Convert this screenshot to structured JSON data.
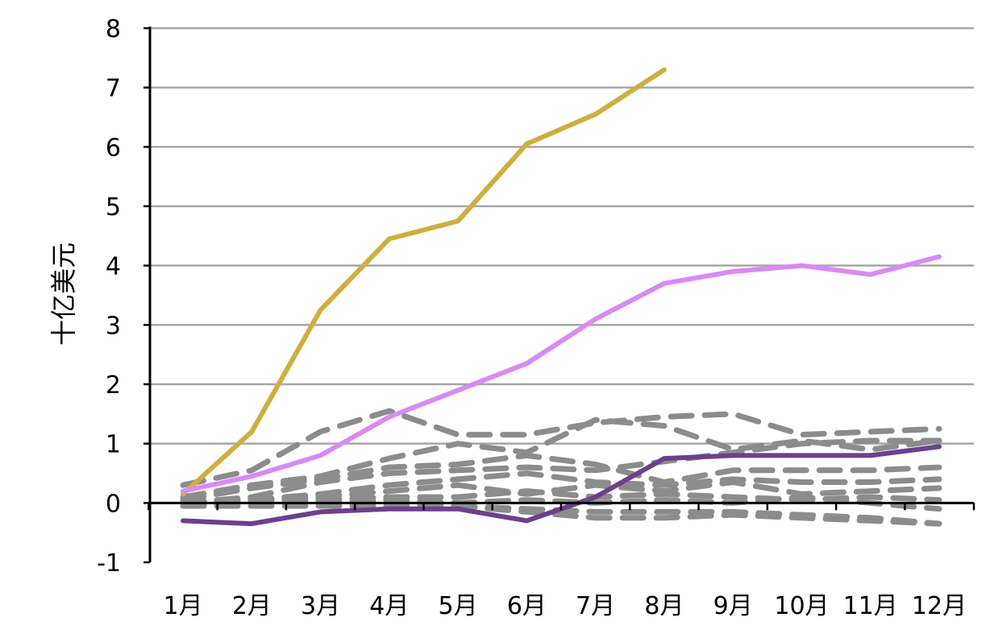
{
  "chart_data": {
    "type": "line",
    "title": "",
    "xlabel": "",
    "ylabel": "十亿美元",
    "categories": [
      "1月",
      "2月",
      "3月",
      "4月",
      "5月",
      "6月",
      "7月",
      "8月",
      "9月",
      "10月",
      "11月",
      "12月"
    ],
    "ylim": [
      -1,
      8
    ],
    "yticks": [
      "-1",
      "0",
      "1",
      "2",
      "3",
      "4",
      "5",
      "6",
      "7",
      "8"
    ],
    "grid": true,
    "legend": "none",
    "highlight_series": [
      {
        "color": "#CFAE3F",
        "values": [
          0.15,
          1.2,
          3.25,
          4.45,
          4.75,
          6.05,
          6.55,
          7.3,
          null,
          null,
          null,
          null
        ]
      },
      {
        "color": "#D98AF5",
        "values": [
          0.2,
          0.45,
          0.8,
          1.45,
          1.9,
          2.35,
          3.1,
          3.7,
          3.9,
          4.0,
          3.85,
          4.15
        ]
      },
      {
        "color": "#6E3F8E",
        "values": [
          -0.3,
          -0.35,
          -0.15,
          -0.1,
          -0.1,
          -0.3,
          0.1,
          0.75,
          0.8,
          0.8,
          0.8,
          0.95
        ]
      }
    ],
    "background_series_color": "#8C8C8C",
    "background_series": [
      {
        "values": [
          0.3,
          0.55,
          1.2,
          1.55,
          1.15,
          1.15,
          1.35,
          1.45,
          1.5,
          1.15,
          1.2,
          1.25
        ]
      },
      {
        "values": [
          0.1,
          0.3,
          0.45,
          0.75,
          1.0,
          0.85,
          1.4,
          1.3,
          0.9,
          1.05,
          0.9,
          1.05
        ]
      },
      {
        "values": [
          0.05,
          0.25,
          0.4,
          0.6,
          0.65,
          0.8,
          0.65,
          0.35,
          0.55,
          0.55,
          0.55,
          0.6
        ]
      },
      {
        "values": [
          0.0,
          0.1,
          0.35,
          0.5,
          0.55,
          0.6,
          0.55,
          0.7,
          0.85,
          1.0,
          1.05,
          1.05
        ]
      },
      {
        "values": [
          0.0,
          0.05,
          0.15,
          0.3,
          0.4,
          0.5,
          0.35,
          0.3,
          0.4,
          0.35,
          0.35,
          0.4
        ]
      },
      {
        "values": [
          0.0,
          0.05,
          0.1,
          0.2,
          0.3,
          0.15,
          0.3,
          0.2,
          0.35,
          0.15,
          0.2,
          0.25
        ]
      },
      {
        "values": [
          0.0,
          0.05,
          0.05,
          0.1,
          0.1,
          0.2,
          0.1,
          0.15,
          0.1,
          0.05,
          0.1,
          0.05
        ]
      },
      {
        "values": [
          -0.05,
          0.0,
          0.0,
          0.05,
          0.0,
          0.05,
          0.0,
          0.05,
          0.0,
          0.1,
          0.0,
          -0.1
        ]
      },
      {
        "values": [
          -0.05,
          -0.05,
          -0.05,
          -0.05,
          -0.05,
          -0.1,
          -0.15,
          -0.15,
          -0.15,
          -0.2,
          -0.25,
          -0.35
        ]
      },
      {
        "values": [
          0.05,
          0.0,
          0.0,
          0.0,
          -0.05,
          -0.15,
          -0.25,
          -0.25,
          -0.2,
          -0.25,
          -0.3,
          -0.35
        ]
      }
    ]
  }
}
